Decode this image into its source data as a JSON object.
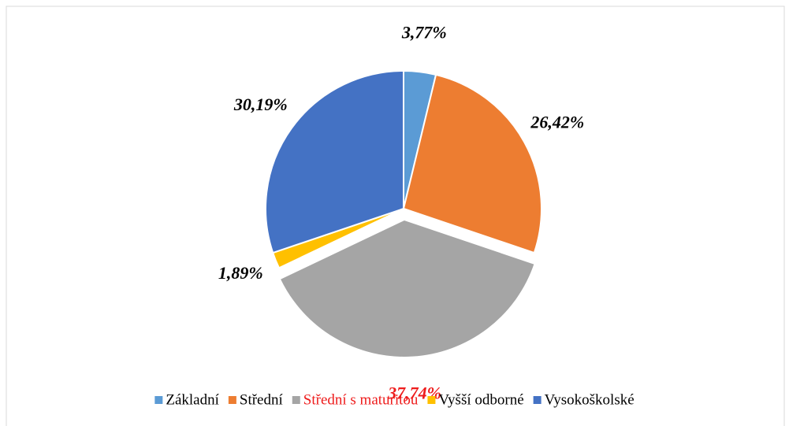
{
  "chart_data": {
    "type": "pie",
    "categories": [
      "Základní",
      "Střední",
      "Střední s maturitou",
      "Vyšší odborné",
      "Vysokoškolské"
    ],
    "values": [
      3.77,
      26.42,
      37.74,
      1.89,
      30.19
    ],
    "value_labels": [
      "3,77%",
      "26,42%",
      "37,74%",
      "1,89%",
      "30,19%"
    ],
    "colors": [
      "#5b9bd5",
      "#ed7d31",
      "#a5a5a5",
      "#ffc000",
      "#4472c4"
    ],
    "highlight": {
      "index": 2,
      "color": "#ee1c1c"
    },
    "legend": "bottom"
  }
}
